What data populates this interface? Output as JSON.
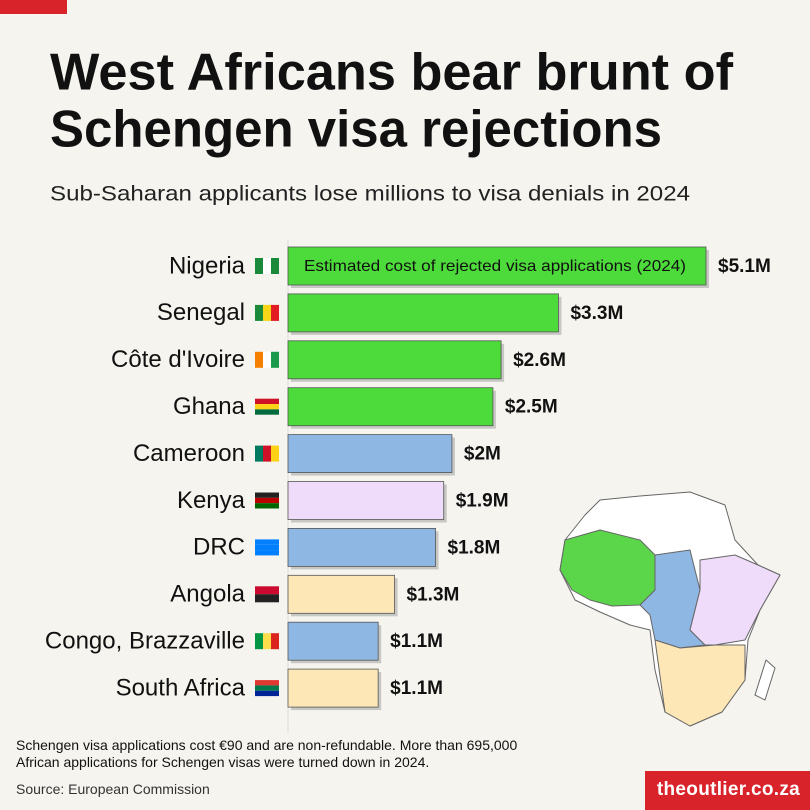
{
  "chart_data": {
    "type": "bar",
    "orientation": "horizontal",
    "title": "West Africans bear brunt of Schengen visa rejections",
    "subtitle": "Sub-Saharan applicants lose millions to visa denials in 2024",
    "legend_label": "Estimated cost of rejected visa applications (2024)",
    "categories": [
      "Nigeria",
      "Senegal",
      "Côte d'Ivoire",
      "Ghana",
      "Cameroon",
      "Kenya",
      "DRC",
      "Angola",
      "Congo, Brazzaville",
      "South Africa"
    ],
    "values": [
      5.1,
      3.3,
      2.6,
      2.5,
      2,
      1.9,
      1.8,
      1.3,
      1.1,
      1.1
    ],
    "value_labels": [
      "$5.1M",
      "$3.3M",
      "$2.6M",
      "$2.5M",
      "$2M",
      "$1.9M",
      "$1.8M",
      "$1.3M",
      "$1.1M",
      "$1.1M"
    ],
    "colors": [
      "#4cdb3a",
      "#4cdb3a",
      "#4cdb3a",
      "#4cdb3a",
      "#8fb7e4",
      "#efdcfa",
      "#8fb7e4",
      "#fde7b6",
      "#8fb7e4",
      "#fde7b6"
    ],
    "xlim": [
      0,
      5.1
    ],
    "note": "Schengen visa applications cost €90 and are non-refundable. More than 695,000 African applications for Schengen visas were turned down in 2024.",
    "source": "Source: European Commission",
    "brand": "theoutlier.co.za"
  }
}
